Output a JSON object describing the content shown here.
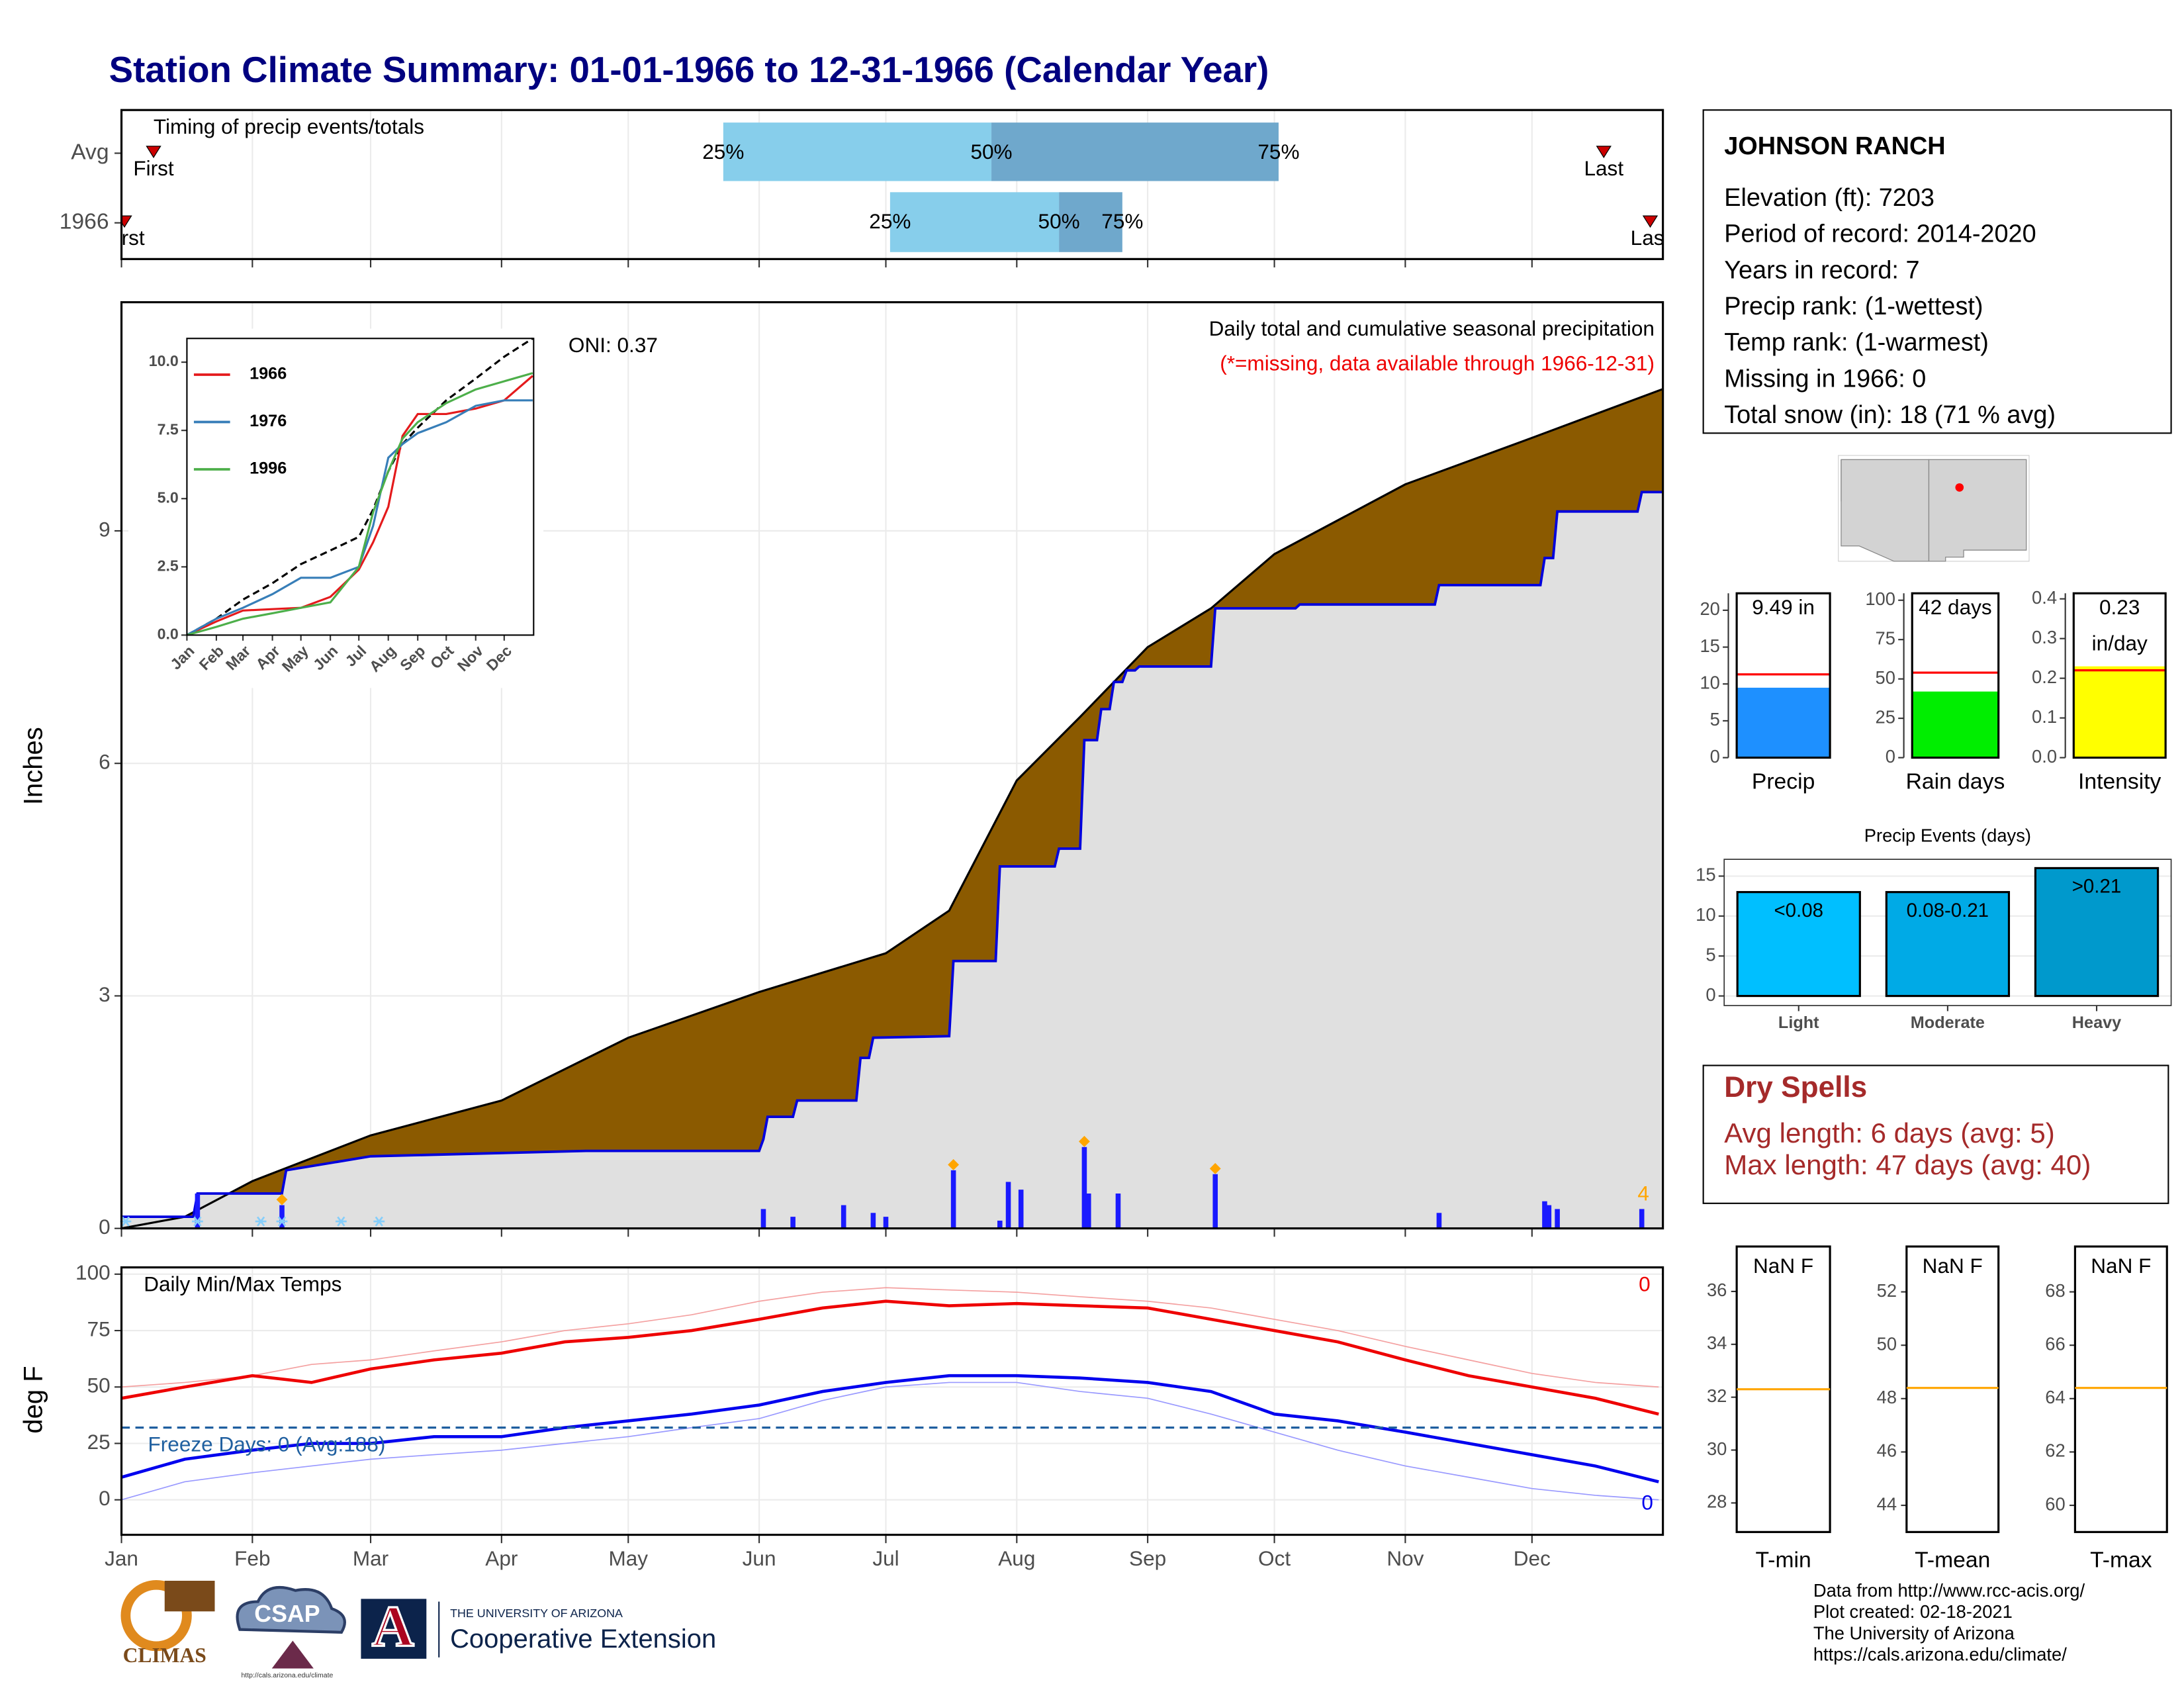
{
  "title": "Station Climate Summary: 01-01-1966 to 12-31-1966 (Calendar Year)",
  "chart_data": [
    {
      "type": "timing",
      "title": "Timing of precip events/totals",
      "xlim": [
        0,
        365
      ],
      "categories": [
        "Avg",
        "1966"
      ],
      "q25": [
        142.5,
        182
      ],
      "q50": [
        206,
        222
      ],
      "q75": [
        274,
        237
      ],
      "first": [
        7.6,
        0.7
      ],
      "last": [
        351,
        362
      ],
      "quartile_labels": [
        "25%",
        "50%",
        "75%"
      ],
      "first_label": "First",
      "last_label": "Last",
      "colors": [
        "#87ceeb",
        "#6fa8cc"
      ],
      "marker_color": "#cc0000"
    },
    {
      "type": "precip",
      "title": "Daily total and cumulative seasonal precipitation",
      "subtitle": "(*=missing, data available through 1966-12-31)",
      "annotation": "ONI: 0.37",
      "ylabel": "Inches",
      "xlim": [
        0,
        365
      ],
      "ylim": [
        0,
        11.95
      ],
      "yticks": [
        0,
        3,
        6,
        9
      ],
      "grid": true,
      "avg_cumulative": {
        "x": [
          0,
          15,
          31,
          59,
          90,
          120,
          151,
          181,
          196,
          212,
          227,
          243,
          258,
          273,
          304,
          334,
          365
        ],
        "values": [
          0,
          0.15,
          0.61,
          1.2,
          1.65,
          2.46,
          3.05,
          3.55,
          4.1,
          5.78,
          6.6,
          7.5,
          8.0,
          8.7,
          9.6,
          10.2,
          10.83
        ]
      },
      "cumulative": {
        "x": [
          0,
          17,
          18,
          38,
          39,
          59,
          110,
          151,
          152,
          153,
          159,
          160,
          174,
          175,
          177,
          178,
          196,
          197,
          207,
          208,
          221,
          222,
          227,
          228,
          231,
          232,
          234,
          235,
          237,
          238,
          240,
          241,
          258,
          259,
          278,
          279,
          311,
          312,
          336,
          337,
          339,
          340,
          359,
          360,
          365
        ],
        "values": [
          0.15,
          0.15,
          0.45,
          0.45,
          0.75,
          0.93,
          1.0,
          1.0,
          1.15,
          1.44,
          1.44,
          1.65,
          1.65,
          2.2,
          2.2,
          2.46,
          2.48,
          3.45,
          3.45,
          4.67,
          4.67,
          4.9,
          4.9,
          6.3,
          6.3,
          6.7,
          6.7,
          7.05,
          7.05,
          7.2,
          7.2,
          7.25,
          7.25,
          8.0,
          8.0,
          8.05,
          8.05,
          8.3,
          8.3,
          8.65,
          8.65,
          9.25,
          9.25,
          9.5,
          9.5
        ]
      },
      "daily": {
        "x": [
          18,
          38,
          152,
          159,
          171,
          178,
          181,
          197,
          208,
          210,
          213,
          228,
          229,
          236,
          259,
          312,
          337,
          338,
          340,
          360
        ],
        "values": [
          0.45,
          0.3,
          0.25,
          0.15,
          0.3,
          0.2,
          0.15,
          0.75,
          0.1,
          0.6,
          0.5,
          1.05,
          0.45,
          0.45,
          0.7,
          0.2,
          0.35,
          0.3,
          0.25,
          0.25
        ]
      },
      "top_events": {
        "x": [
          38,
          197,
          228,
          259
        ],
        "values": [
          0.3,
          0.75,
          1.05,
          0.7
        ]
      },
      "top_count": 4,
      "snow_days": [
        1,
        18,
        33,
        38,
        52,
        61
      ],
      "colors": {
        "avg": "#8b5a00",
        "area": "#e0e0e0",
        "line": "#0000dd",
        "daily": "#1a1aff",
        "top": "#ffa500",
        "snow": "#87cefa"
      }
    },
    {
      "type": "line",
      "xlim": [
        0,
        365
      ],
      "ylim": [
        0,
        10.87
      ],
      "yticks": [
        {
          "value": 0,
          "label": "0.0"
        },
        {
          "value": 2.5,
          "label": "2.5"
        },
        {
          "value": 5,
          "label": "5.0"
        },
        {
          "value": 7.5,
          "label": "7.5"
        },
        {
          "value": 10,
          "label": "10.0"
        }
      ],
      "xticks": [
        {
          "value": 0,
          "label": "Jan"
        },
        {
          "value": 31,
          "label": "Feb"
        },
        {
          "value": 59,
          "label": "Mar"
        },
        {
          "value": 90,
          "label": "Apr"
        },
        {
          "value": 120,
          "label": "May"
        },
        {
          "value": 151,
          "label": "Jun"
        },
        {
          "value": 181,
          "label": "Jul"
        },
        {
          "value": 212,
          "label": "Aug"
        },
        {
          "value": 243,
          "label": "Sep"
        },
        {
          "value": 273,
          "label": "Oct"
        },
        {
          "value": 304,
          "label": "Nov"
        },
        {
          "value": 334,
          "label": "Dec"
        }
      ],
      "x": [
        0,
        31,
        59,
        90,
        120,
        151,
        181,
        196,
        212,
        227,
        243,
        273,
        304,
        334,
        364
      ],
      "avg": [
        0,
        0.6,
        1.3,
        1.9,
        2.6,
        3.1,
        3.6,
        4.6,
        6.0,
        7.0,
        7.6,
        8.6,
        9.4,
        10.2,
        10.87
      ],
      "avg_color": "#000000",
      "series": [
        {
          "name": "1966",
          "color": "#e41a1c",
          "values": [
            0,
            0.5,
            0.9,
            0.95,
            1.0,
            1.4,
            2.4,
            3.4,
            4.7,
            7.3,
            8.1,
            8.1,
            8.3,
            8.6,
            9.5
          ]
        },
        {
          "name": "1976",
          "color": "#377eb8",
          "values": [
            0,
            0.6,
            1.0,
            1.5,
            2.1,
            2.1,
            2.5,
            4.0,
            6.5,
            7.0,
            7.4,
            7.8,
            8.4,
            8.6,
            8.6
          ]
        },
        {
          "name": "1996",
          "color": "#4daf4a",
          "values": [
            0,
            0.3,
            0.6,
            0.8,
            1.0,
            1.2,
            2.5,
            4.5,
            6.0,
            7.2,
            7.8,
            8.5,
            9.0,
            9.3,
            9.6
          ]
        }
      ]
    },
    {
      "type": "temp",
      "title": "Daily Min/Max Temps",
      "ylabel": "deg F",
      "xlim": [
        0,
        365
      ],
      "ylim": [
        -15.5,
        103
      ],
      "yticks": [
        0,
        25,
        50,
        75,
        100
      ],
      "grid": true,
      "xticks": [
        {
          "value": 0,
          "label": "Jan"
        },
        {
          "value": 31,
          "label": "Feb"
        },
        {
          "value": 59,
          "label": "Mar"
        },
        {
          "value": 90,
          "label": "Apr"
        },
        {
          "value": 120,
          "label": "May"
        },
        {
          "value": 151,
          "label": "Jun"
        },
        {
          "value": 181,
          "label": "Jul"
        },
        {
          "value": 212,
          "label": "Aug"
        },
        {
          "value": 243,
          "label": "Sep"
        },
        {
          "value": 273,
          "label": "Oct"
        },
        {
          "value": 304,
          "label": "Nov"
        },
        {
          "value": 334,
          "label": "Dec"
        }
      ],
      "x": [
        0,
        15,
        31,
        45,
        59,
        74,
        90,
        105,
        120,
        135,
        151,
        166,
        181,
        196,
        212,
        227,
        243,
        258,
        273,
        288,
        304,
        319,
        334,
        349,
        364
      ],
      "max": [
        45,
        50,
        55,
        52,
        58,
        62,
        65,
        70,
        72,
        75,
        80,
        85,
        88,
        86,
        87,
        86,
        85,
        80,
        75,
        70,
        62,
        55,
        50,
        45,
        38
      ],
      "avg_max": [
        50,
        52,
        55,
        60,
        62,
        66,
        70,
        75,
        78,
        82,
        88,
        92,
        94,
        93,
        92,
        90,
        88,
        85,
        80,
        75,
        68,
        62,
        56,
        52,
        50
      ],
      "min": [
        10,
        18,
        22,
        25,
        25,
        28,
        28,
        32,
        35,
        38,
        42,
        48,
        52,
        55,
        55,
        54,
        52,
        48,
        38,
        35,
        30,
        25,
        20,
        15,
        8
      ],
      "avg_min": [
        0,
        8,
        12,
        15,
        18,
        20,
        22,
        25,
        28,
        32,
        36,
        44,
        50,
        52,
        52,
        48,
        45,
        38,
        30,
        22,
        15,
        10,
        5,
        2,
        0
      ],
      "colors": {
        "max": "#ee0000",
        "avg_max": "#f4a0a0",
        "min": "#0000ee",
        "avg_min": "#9999ff",
        "freeze": "#1f5f9f"
      },
      "freeze_line": 32,
      "freeze_label": "Freeze Days: 0 (Avg:188)",
      "max_count": 0,
      "min_count": 0
    },
    {
      "type": "gauge",
      "category": "Precip",
      "value": 9.49,
      "value_label": "9.49 in",
      "avg": 11.3,
      "ylim": [
        0,
        22.3
      ],
      "yticks": [
        0,
        5,
        10,
        15,
        20
      ],
      "color": "#1e90ff",
      "avg_color": "#ff0000"
    },
    {
      "type": "gauge",
      "category": "Rain days",
      "value": 42,
      "value_label": "42 days",
      "avg": 54,
      "ylim": [
        0,
        104.4
      ],
      "yticks": [
        0,
        25,
        50,
        75,
        100
      ],
      "color": "#00ee00",
      "avg_color": "#ff0000"
    },
    {
      "type": "gauge",
      "category": "Intensity",
      "value": 0.23,
      "value_label": "0.23 in/day",
      "avg": 0.22,
      "ylim": [
        0,
        0.414
      ],
      "yticks": [
        {
          "value": 0,
          "label": "0.0"
        },
        {
          "value": 0.1,
          "label": "0.1"
        },
        {
          "value": 0.2,
          "label": "0.2"
        },
        {
          "value": 0.3,
          "label": "0.3"
        },
        {
          "value": 0.4,
          "label": "0.4"
        }
      ],
      "color": "#ffff00",
      "avg_color": "#ff0000"
    },
    {
      "type": "bar",
      "title": "Precip Events (days)",
      "categories": [
        "Light",
        "Moderate",
        "Heavy"
      ],
      "values": [
        13,
        13,
        16
      ],
      "bin_labels": [
        "<0.08",
        "0.08-0.21",
        ">0.21"
      ],
      "ylim": [
        -1.2,
        17.1
      ],
      "yticks": [
        0,
        5,
        10,
        15
      ],
      "grid": true,
      "colors": [
        "#00bfff",
        "#00aae6",
        "#0099cc"
      ]
    },
    {
      "type": "temp_gauge",
      "category": "T-min",
      "value_label": "NaN F",
      "line": 32.3,
      "ylim": [
        26.9,
        37.7
      ],
      "yticks": [
        28,
        30,
        32,
        34,
        36
      ],
      "line_color": "#ffa500"
    },
    {
      "type": "temp_gauge",
      "category": "T-mean",
      "value_label": "NaN F",
      "line": 48.4,
      "ylim": [
        43.0,
        53.7
      ],
      "yticks": [
        44,
        46,
        48,
        50,
        52
      ],
      "line_color": "#ffa500"
    },
    {
      "type": "temp_gauge",
      "category": "T-max",
      "value_label": "NaN F",
      "line": 64.4,
      "ylim": [
        59.0,
        69.7
      ],
      "yticks": [
        60,
        62,
        64,
        66,
        68
      ],
      "line_color": "#ffa500"
    }
  ],
  "station": {
    "name": "JOHNSON RANCH",
    "lines": [
      "Elevation (ft): 7203",
      "Period of record: 2014-2020",
      "Years in record: 7",
      "Precip rank:  (1-wettest)",
      "Temp rank:  (1-warmest)",
      "Missing in 1966: 0",
      "Total snow (in): 18 (71 % avg)"
    ]
  },
  "dry_spells": {
    "title": "Dry Spells",
    "lines": [
      "Avg length: 6 days (avg: 5)",
      "Max length: 47 days (avg: 40)"
    ]
  },
  "footer": [
    "Data from http://www.rcc-acis.org/",
    "Plot created: 02-18-2021",
    "The University of Arizona",
    "https://cals.arizona.edu/climate/"
  ],
  "logos": {
    "climas": "CLIMAS",
    "csap": "CSAP",
    "csap_url": "http://cals.arizona.edu/climate",
    "ua_letter": "A",
    "ua_name": "THE UNIVERSITY OF ARIZONA",
    "ua_unit": "Cooperative Extension"
  }
}
